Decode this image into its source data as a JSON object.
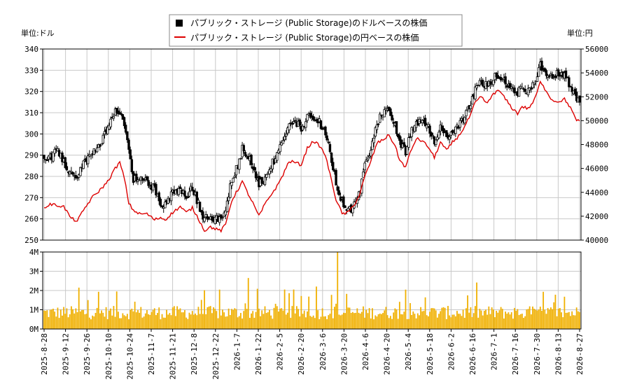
{
  "chart_data": {
    "type": "line",
    "legend": {
      "placement": "top-center",
      "items": [
        {
          "label": "パブリック・ストレージ (Public Storage)のドルベースの株価",
          "style": "candlestick",
          "color": "#000000"
        },
        {
          "label": "パブリック・ストレージ (Public Storage)の円ベースの株価",
          "style": "line",
          "color": "#dd0000"
        }
      ]
    },
    "left_unit_label": "単位:ドル",
    "right_unit_label": "単位:円",
    "y_left_ticks": [
      "340",
      "330",
      "320",
      "310",
      "300",
      "290",
      "280",
      "270",
      "260",
      "250"
    ],
    "y_right_ticks": [
      "56000",
      "54000",
      "52000",
      "50000",
      "48000",
      "46000",
      "44000",
      "42000",
      "40000"
    ],
    "y_left_range": [
      250,
      340
    ],
    "y_right_range": [
      40000,
      56000
    ],
    "volume_ticks": [
      "4M",
      "3M",
      "2M",
      "1M",
      "0M"
    ],
    "volume_range": [
      0,
      4000000
    ],
    "x_tick_labels": [
      "2025-8-28",
      "2025-9-12",
      "2025-9-26",
      "2025-10-10",
      "2025-10-24",
      "2025-11-7",
      "2025-11-21",
      "2025-12-8",
      "2025-12-22",
      "2026-1-7",
      "2026-1-22",
      "2026-2-5",
      "2026-2-20",
      "2026-3-6",
      "2026-3-20",
      "2026-4-6",
      "2026-4-20",
      "2026-5-4",
      "2026-5-18",
      "2026-6-2",
      "2026-6-16",
      "2026-7-1",
      "2026-7-16",
      "2026-7-30",
      "2026-8-13",
      "2026-8-27"
    ],
    "usd_anchors": [
      [
        0,
        290
      ],
      [
        4,
        289
      ],
      [
        9,
        293
      ],
      [
        13,
        287
      ],
      [
        18,
        281
      ],
      [
        22,
        280
      ],
      [
        27,
        287
      ],
      [
        32,
        292
      ],
      [
        37,
        295
      ],
      [
        42,
        302
      ],
      [
        47,
        310
      ],
      [
        50,
        311
      ],
      [
        53,
        305
      ],
      [
        56,
        292
      ],
      [
        59,
        279
      ],
      [
        63,
        278
      ],
      [
        68,
        278
      ],
      [
        73,
        274
      ],
      [
        77,
        268
      ],
      [
        80,
        267
      ],
      [
        85,
        272
      ],
      [
        90,
        273
      ],
      [
        94,
        270
      ],
      [
        98,
        275
      ],
      [
        102,
        267
      ],
      [
        106,
        260
      ],
      [
        110,
        261
      ],
      [
        114,
        260
      ],
      [
        117,
        259
      ],
      [
        120,
        264
      ],
      [
        124,
        279
      ],
      [
        128,
        285
      ],
      [
        131,
        293
      ],
      [
        134,
        291
      ],
      [
        138,
        285
      ],
      [
        142,
        276
      ],
      [
        146,
        279
      ],
      [
        150,
        285
      ],
      [
        154,
        290
      ],
      [
        158,
        296
      ],
      [
        162,
        304
      ],
      [
        166,
        305
      ],
      [
        170,
        303
      ],
      [
        174,
        308
      ],
      [
        178,
        306
      ],
      [
        182,
        306
      ],
      [
        186,
        300
      ],
      [
        189,
        291
      ],
      [
        193,
        277
      ],
      [
        197,
        268
      ],
      [
        201,
        264
      ],
      [
        204,
        265
      ],
      [
        208,
        271
      ],
      [
        212,
        285
      ],
      [
        216,
        293
      ],
      [
        220,
        305
      ],
      [
        224,
        310
      ],
      [
        228,
        311
      ],
      [
        232,
        305
      ],
      [
        235,
        296
      ],
      [
        239,
        291
      ],
      [
        242,
        300
      ],
      [
        246,
        305
      ],
      [
        250,
        307
      ],
      [
        254,
        304
      ],
      [
        258,
        296
      ],
      [
        262,
        305
      ],
      [
        266,
        297
      ],
      [
        270,
        300
      ],
      [
        274,
        304
      ],
      [
        278,
        308
      ],
      [
        282,
        314
      ],
      [
        285,
        322
      ],
      [
        289,
        325
      ],
      [
        293,
        322
      ],
      [
        297,
        327
      ],
      [
        301,
        328
      ],
      [
        305,
        325
      ],
      [
        309,
        321
      ],
      [
        313,
        320
      ],
      [
        316,
        323
      ],
      [
        320,
        320
      ],
      [
        324,
        323
      ],
      [
        328,
        332
      ],
      [
        332,
        329
      ],
      [
        336,
        328
      ],
      [
        340,
        329
      ],
      [
        344,
        327
      ],
      [
        348,
        322
      ],
      [
        351,
        319
      ],
      [
        354,
        314
      ]
    ],
    "jpy_anchors": [
      [
        0,
        42700
      ],
      [
        4,
        43000
      ],
      [
        9,
        42900
      ],
      [
        13,
        42800
      ],
      [
        18,
        41800
      ],
      [
        22,
        41600
      ],
      [
        27,
        42700
      ],
      [
        32,
        43600
      ],
      [
        37,
        44200
      ],
      [
        42,
        44900
      ],
      [
        47,
        46000
      ],
      [
        50,
        46500
      ],
      [
        53,
        45200
      ],
      [
        56,
        43100
      ],
      [
        59,
        42500
      ],
      [
        63,
        42200
      ],
      [
        68,
        42200
      ],
      [
        73,
        41700
      ],
      [
        77,
        41900
      ],
      [
        80,
        41700
      ],
      [
        85,
        42300
      ],
      [
        90,
        42800
      ],
      [
        94,
        42300
      ],
      [
        98,
        42700
      ],
      [
        102,
        41800
      ],
      [
        106,
        40800
      ],
      [
        110,
        41100
      ],
      [
        114,
        40900
      ],
      [
        117,
        40800
      ],
      [
        120,
        41300
      ],
      [
        124,
        43300
      ],
      [
        128,
        44200
      ],
      [
        131,
        44900
      ],
      [
        134,
        44100
      ],
      [
        138,
        43100
      ],
      [
        142,
        42000
      ],
      [
        146,
        43000
      ],
      [
        150,
        43800
      ],
      [
        154,
        44500
      ],
      [
        158,
        45500
      ],
      [
        162,
        46600
      ],
      [
        166,
        46500
      ],
      [
        170,
        46300
      ],
      [
        174,
        47700
      ],
      [
        178,
        48300
      ],
      [
        182,
        47900
      ],
      [
        186,
        47100
      ],
      [
        189,
        45500
      ],
      [
        193,
        43400
      ],
      [
        197,
        42200
      ],
      [
        201,
        42300
      ],
      [
        204,
        42800
      ],
      [
        208,
        43600
      ],
      [
        212,
        45300
      ],
      [
        216,
        46600
      ],
      [
        220,
        48100
      ],
      [
        224,
        48400
      ],
      [
        228,
        48800
      ],
      [
        232,
        47900
      ],
      [
        235,
        46700
      ],
      [
        239,
        46100
      ],
      [
        242,
        47300
      ],
      [
        246,
        48500
      ],
      [
        250,
        48300
      ],
      [
        254,
        47800
      ],
      [
        258,
        46900
      ],
      [
        262,
        48200
      ],
      [
        266,
        47500
      ],
      [
        270,
        48200
      ],
      [
        274,
        48700
      ],
      [
        278,
        49500
      ],
      [
        282,
        50500
      ],
      [
        285,
        51500
      ],
      [
        289,
        52000
      ],
      [
        293,
        51400
      ],
      [
        297,
        52300
      ],
      [
        301,
        52500
      ],
      [
        305,
        51800
      ],
      [
        309,
        51100
      ],
      [
        313,
        50600
      ],
      [
        316,
        51200
      ],
      [
        320,
        51000
      ],
      [
        324,
        51700
      ],
      [
        328,
        53200
      ],
      [
        332,
        52500
      ],
      [
        336,
        51700
      ],
      [
        340,
        51600
      ],
      [
        344,
        51800
      ],
      [
        348,
        51100
      ],
      [
        351,
        50200
      ],
      [
        354,
        49900
      ]
    ]
  }
}
